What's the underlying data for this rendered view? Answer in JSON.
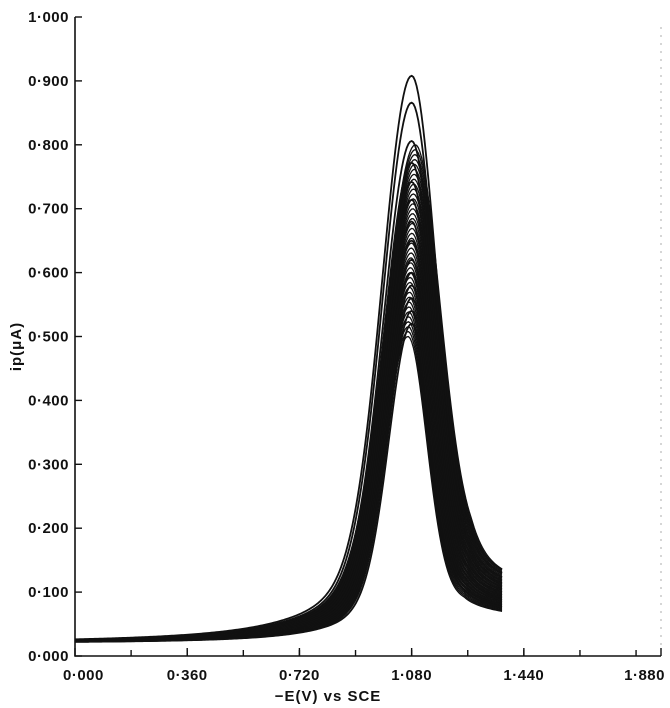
{
  "chart_data": {
    "type": "line",
    "title": "",
    "xlabel": "−E(V) vs SCE",
    "ylabel": "ip(μA)",
    "xlim": [
      0.0,
      1.88
    ],
    "ylim": [
      0.0,
      1.0
    ],
    "x_ticks": [
      0.0,
      0.36,
      0.72,
      1.08,
      1.44,
      1.88
    ],
    "x_tick_labels": [
      "0·000",
      "0·360",
      "0·720",
      "1·080",
      "1·440",
      "1·880"
    ],
    "y_ticks": [
      0.0,
      0.1,
      0.2,
      0.3,
      0.4,
      0.5,
      0.6,
      0.7,
      0.8,
      0.9,
      1.0
    ],
    "y_tick_labels": [
      "0·000",
      "0·100",
      "0·200",
      "0·300",
      "0·400",
      "0·500",
      "0·600",
      "0·700",
      "0·800",
      "0·900",
      "1·000"
    ],
    "peak_potential": 1.08,
    "baseline_current": 0.02,
    "end_potential": 1.37,
    "peak_currents": [
      0.908,
      0.866,
      0.806,
      0.772,
      0.742,
      0.714,
      0.68,
      0.65,
      0.62,
      0.6,
      0.58,
      0.56,
      0.54,
      0.52
    ],
    "grid": false,
    "legend": "none"
  }
}
